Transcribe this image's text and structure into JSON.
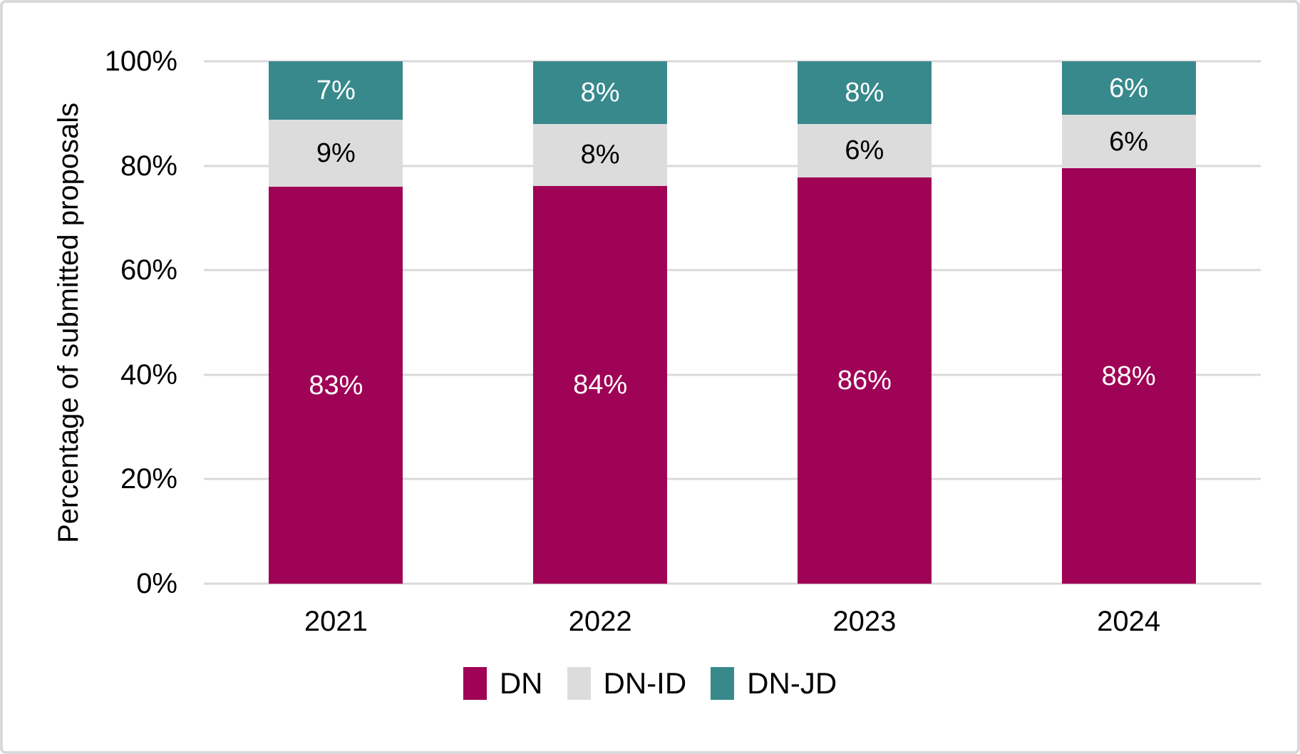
{
  "chart_data": {
    "type": "bar",
    "stacked": true,
    "orientation": "vertical",
    "title": "",
    "xlabel": "",
    "ylabel": "Percentage of submitted proposals",
    "categories": [
      "2021",
      "2022",
      "2023",
      "2024"
    ],
    "series": [
      {
        "name": "DN",
        "color": "#9f0355",
        "label_color": "#ffffff",
        "values": [
          83,
          84,
          86,
          88
        ],
        "labels": [
          "83%",
          "84%",
          "86%",
          "88%"
        ]
      },
      {
        "name": "DN-ID",
        "color": "#dcdcdc",
        "label_color": "#000000",
        "values": [
          9,
          8,
          6,
          6
        ],
        "labels": [
          "9%",
          "8%",
          "6%",
          "6%"
        ]
      },
      {
        "name": "DN-JD",
        "color": "#38898c",
        "label_color": "#ffffff",
        "values": [
          7,
          8,
          8,
          6
        ],
        "labels": [
          "7%",
          "8%",
          "8%",
          "6%"
        ]
      }
    ],
    "yticks": [
      "0%",
      "20%",
      "40%",
      "60%",
      "80%",
      "100%"
    ],
    "ylim": [
      0,
      100
    ],
    "grid": true,
    "gridline_color": "#d9d9d9",
    "legend_position": "bottom"
  }
}
